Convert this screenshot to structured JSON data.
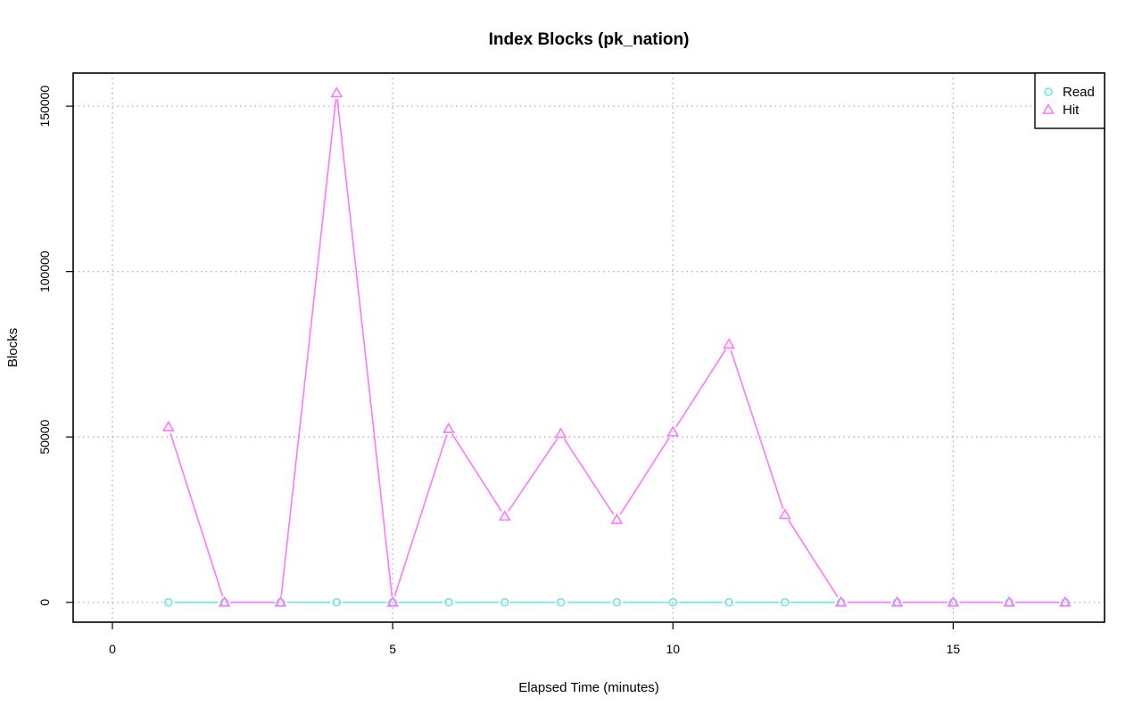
{
  "chart_data": {
    "type": "line",
    "title": "Index Blocks (pk_nation)",
    "xlabel": "Elapsed Time (minutes)",
    "ylabel": "Blocks",
    "xlim": [
      -0.7,
      17.7
    ],
    "ylim": [
      -6000,
      160000
    ],
    "xticks": [
      0,
      5,
      10,
      15
    ],
    "yticks": [
      0,
      50000,
      100000,
      150000
    ],
    "grid": true,
    "legend_position": "top-right",
    "x": [
      1,
      2,
      3,
      4,
      5,
      6,
      7,
      8,
      9,
      10,
      11,
      12,
      13,
      14,
      15,
      16,
      17
    ],
    "series": [
      {
        "name": "Read",
        "color": "#66e8ee",
        "marker": "circle",
        "values": [
          0,
          0,
          0,
          0,
          0,
          0,
          0,
          0,
          0,
          0,
          0,
          0,
          0,
          0,
          0,
          0,
          0
        ]
      },
      {
        "name": "Hit",
        "color": "#ff77ff",
        "marker": "triangle",
        "values": [
          53000,
          0,
          0,
          154000,
          0,
          52500,
          26000,
          51000,
          25000,
          51500,
          78000,
          26500,
          0,
          0,
          0,
          0,
          0
        ]
      }
    ]
  }
}
